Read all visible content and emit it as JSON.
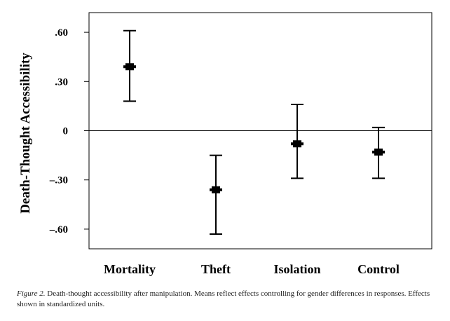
{
  "chart_data": {
    "type": "scatter",
    "title": "",
    "xlabel": "",
    "ylabel": "Death-Thought Accessibility",
    "ylim": [
      -0.72,
      0.72
    ],
    "yticks": [
      0.6,
      0.3,
      0,
      -0.3,
      -0.6
    ],
    "ytick_labels": [
      ".60",
      ".30",
      "0",
      "–.30",
      "–.60"
    ],
    "categories": [
      "Mortality",
      "Theft",
      "Isolation",
      "Control"
    ],
    "values": [
      0.39,
      -0.36,
      -0.08,
      -0.13
    ],
    "error_low": [
      0.18,
      -0.63,
      -0.29,
      -0.29
    ],
    "error_high": [
      0.61,
      -0.15,
      0.16,
      0.02
    ],
    "zero_line": true,
    "grid": false,
    "marker_color": "#000000"
  },
  "caption": {
    "label": "Figure 2.",
    "text": "Death-thought accessibility after manipulation. Means reflect effects controlling for gender differences in responses. Effects shown in standardized units."
  }
}
